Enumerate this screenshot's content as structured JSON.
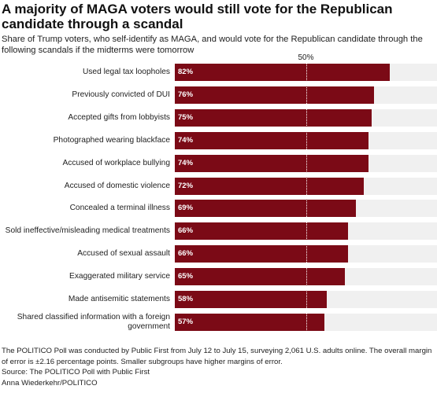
{
  "chart_data": {
    "type": "bar",
    "orientation": "horizontal",
    "title": "A majority of MAGA voters would still vote for the Republican candidate through a scandal",
    "subtitle": "Share of Trump voters, who self-identify as MAGA, and would vote for the Republican candidate through the following scandals if the midterms were tomorrow",
    "categories": [
      "Used legal tax loopholes",
      "Previously convicted of DUI",
      "Accepted gifts from lobbyists",
      "Photographed wearing blackface",
      "Accused of workplace bullying",
      "Accused of domestic violence",
      "Concealed a terminal illness",
      "Sold ineffective/misleading medical treatments",
      "Accused of sexual assault",
      "Exaggerated military service",
      "Made antisemitic statements",
      "Shared classified information with a foreign government"
    ],
    "values": [
      82,
      76,
      75,
      74,
      74,
      72,
      69,
      66,
      66,
      65,
      58,
      57
    ],
    "value_labels": [
      "82%",
      "76%",
      "75%",
      "74%",
      "74%",
      "72%",
      "69%",
      "66%",
      "66%",
      "65%",
      "58%",
      "57%"
    ],
    "color": "#7b0a16",
    "track_color": "#f0f0f0",
    "xlim": [
      0,
      100
    ],
    "xticks": [
      {
        "value": 50,
        "label": "50%"
      }
    ],
    "note": "The POLITICO Poll was conducted by Public First from July 12 to July 15, surveying 2,061 U.S. adults online. The overall margin of error is ±2.16 percentage points. Smaller subgroups have higher margins of error.",
    "source": "Source: The POLITICO Poll with Public First",
    "credit": "Anna Wiederkehr/POLITICO"
  }
}
